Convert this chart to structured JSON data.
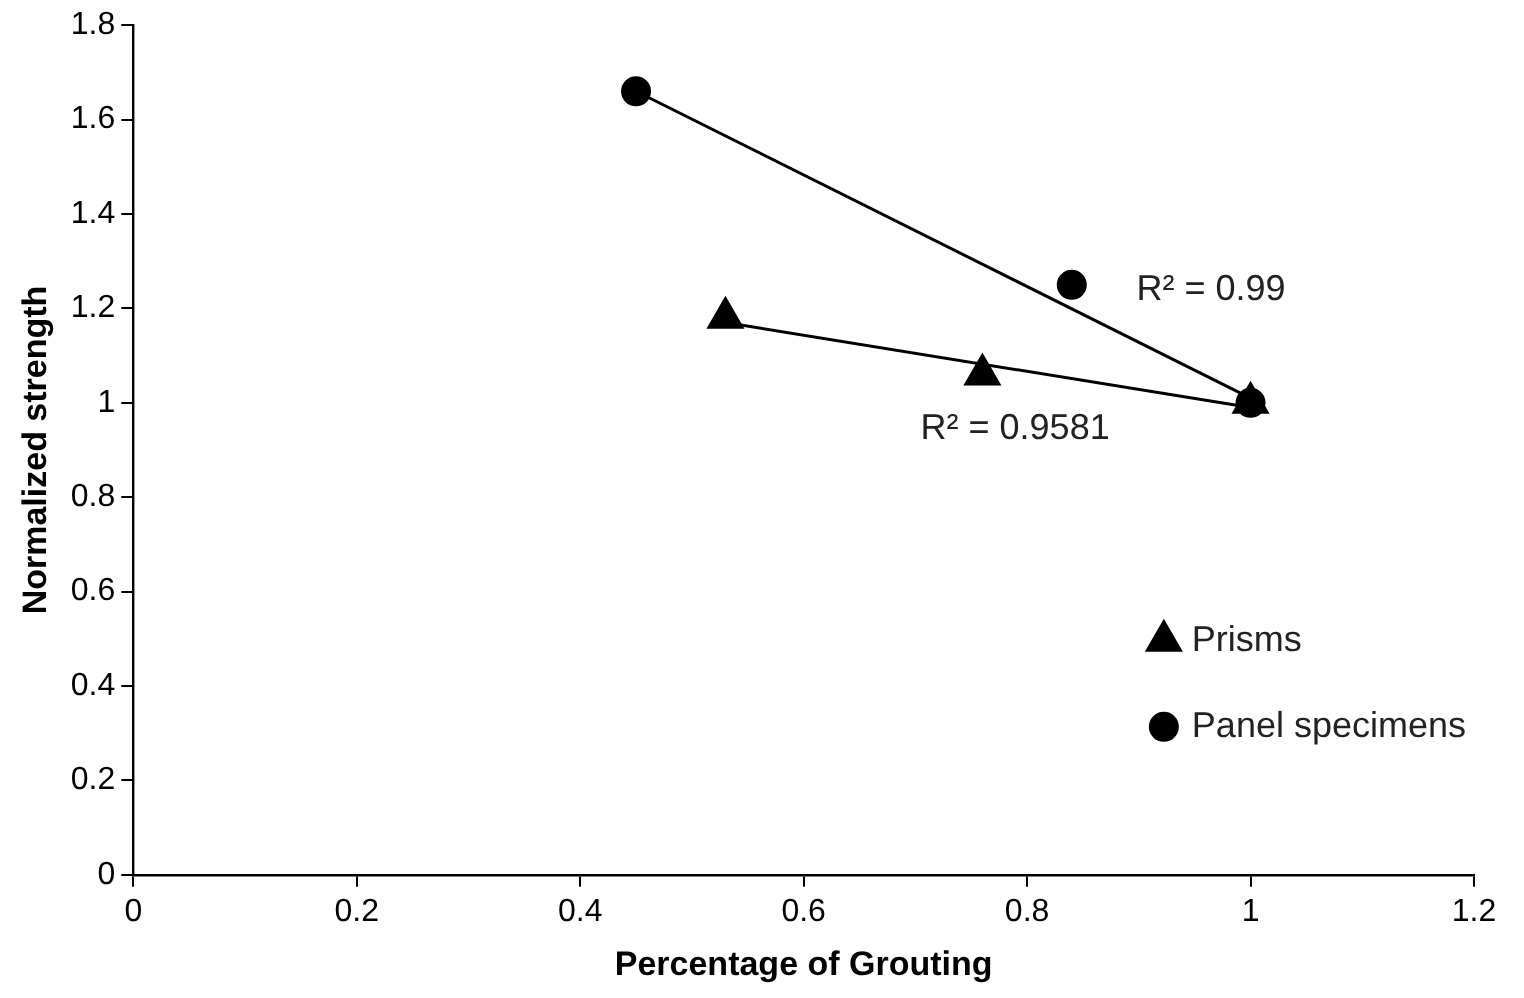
{
  "chart_data": {
    "type": "scatter",
    "xlabel": "Percentage of Grouting",
    "ylabel": "Normalized strength",
    "xlim": [
      0,
      1.2
    ],
    "xticks": [
      0,
      0.2,
      0.4,
      0.6,
      0.8,
      1,
      1.2
    ],
    "ylim": [
      0,
      1.8
    ],
    "yticks": [
      0,
      0.2,
      0.4,
      0.6,
      0.8,
      1,
      1.2,
      1.4,
      1.6,
      1.8
    ],
    "grid": false,
    "legend": "bottom right",
    "series": [
      {
        "name": "Prisms",
        "marker": "triangle",
        "color": "#000000",
        "x": [
          0.53,
          0.76,
          1
        ],
        "values": [
          1.18,
          1.06,
          1
        ]
      },
      {
        "name": "Panel specimens",
        "marker": "circle",
        "color": "#000000",
        "x": [
          0.45,
          0.84,
          1
        ],
        "values": [
          1.66,
          1.25,
          1
        ]
      },
      {
        "type": "line",
        "marker": "none",
        "color": "#000000",
        "x": [
          0.53,
          1
        ],
        "values": [
          1.17,
          0.99
        ]
      },
      {
        "type": "line",
        "marker": "none",
        "color": "#000000",
        "x": [
          0.45,
          1
        ],
        "values": [
          1.66,
          1.01
        ]
      }
    ],
    "annotations": [
      "R² = 0.99",
      "R² = 0.9581"
    ]
  }
}
